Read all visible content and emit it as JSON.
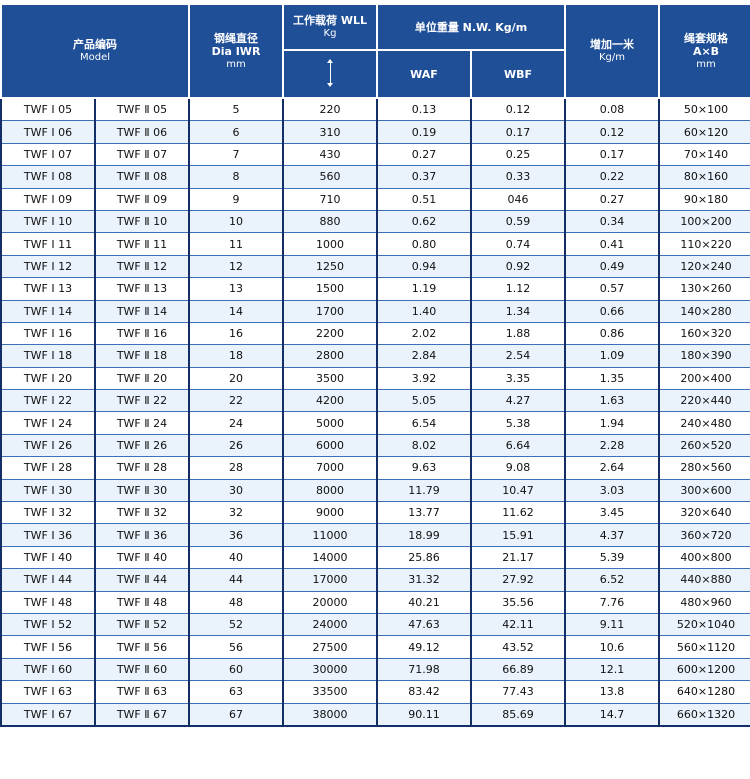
{
  "header": {
    "model_cn": "产品编码",
    "model_en": "Model",
    "dia_cn": "钢绳直径",
    "dia_en": "Dia IWR",
    "dia_unit": "mm",
    "wll": "工作载荷 WLL",
    "wll_unit": "Kg",
    "nw": "单位重量 N.W. Kg/m",
    "waf": "WAF",
    "wbf": "WBF",
    "add_cn": "增加一米",
    "add_unit": "Kg/m",
    "sleeve_cn": "绳套规格",
    "sleeve_dim": "A×B",
    "sleeve_unit": "mm"
  },
  "rows": [
    [
      "TWF Ⅰ 05",
      "TWF Ⅱ 05",
      "5",
      "220",
      "0.13",
      "0.12",
      "0.08",
      "50×100"
    ],
    [
      "TWF Ⅰ 06",
      "TWF Ⅱ 06",
      "6",
      "310",
      "0.19",
      "0.17",
      "0.12",
      "60×120"
    ],
    [
      "TWF Ⅰ 07",
      "TWF Ⅱ 07",
      "7",
      "430",
      "0.27",
      "0.25",
      "0.17",
      "70×140"
    ],
    [
      "TWF Ⅰ 08",
      "TWF Ⅱ 08",
      "8",
      "560",
      "0.37",
      "0.33",
      "0.22",
      "80×160"
    ],
    [
      "TWF Ⅰ 09",
      "TWF Ⅱ 09",
      "9",
      "710",
      "0.51",
      "046",
      "0.27",
      "90×180"
    ],
    [
      "TWF Ⅰ 10",
      "TWF Ⅱ 10",
      "10",
      "880",
      "0.62",
      "0.59",
      "0.34",
      "100×200"
    ],
    [
      "TWF Ⅰ 11",
      "TWF Ⅱ 11",
      "11",
      "1000",
      "0.80",
      "0.74",
      "0.41",
      "110×220"
    ],
    [
      "TWF Ⅰ 12",
      "TWF Ⅱ 12",
      "12",
      "1250",
      "0.94",
      "0.92",
      "0.49",
      "120×240"
    ],
    [
      "TWF Ⅰ 13",
      "TWF Ⅱ 13",
      "13",
      "1500",
      "1.19",
      "1.12",
      "0.57",
      "130×260"
    ],
    [
      "TWF Ⅰ 14",
      "TWF Ⅱ 14",
      "14",
      "1700",
      "1.40",
      "1.34",
      "0.66",
      "140×280"
    ],
    [
      "TWF Ⅰ 16",
      "TWF Ⅱ 16",
      "16",
      "2200",
      "2.02",
      "1.88",
      "0.86",
      "160×320"
    ],
    [
      "TWF Ⅰ 18",
      "TWF Ⅱ 18",
      "18",
      "2800",
      "2.84",
      "2.54",
      "1.09",
      "180×390"
    ],
    [
      "TWF Ⅰ 20",
      "TWF Ⅱ 20",
      "20",
      "3500",
      "3.92",
      "3.35",
      "1.35",
      "200×400"
    ],
    [
      "TWF Ⅰ 22",
      "TWF Ⅱ 22",
      "22",
      "4200",
      "5.05",
      "4.27",
      "1.63",
      "220×440"
    ],
    [
      "TWF Ⅰ 24",
      "TWF Ⅱ 24",
      "24",
      "5000",
      "6.54",
      "5.38",
      "1.94",
      "240×480"
    ],
    [
      "TWF Ⅰ 26",
      "TWF Ⅱ 26",
      "26",
      "6000",
      "8.02",
      "6.64",
      "2.28",
      "260×520"
    ],
    [
      "TWF Ⅰ 28",
      "TWF Ⅱ 28",
      "28",
      "7000",
      "9.63",
      "9.08",
      "2.64",
      "280×560"
    ],
    [
      "TWF Ⅰ 30",
      "TWF Ⅱ 30",
      "30",
      "8000",
      "11.79",
      "10.47",
      "3.03",
      "300×600"
    ],
    [
      "TWF Ⅰ 32",
      "TWF Ⅱ 32",
      "32",
      "9000",
      "13.77",
      "11.62",
      "3.45",
      "320×640"
    ],
    [
      "TWF Ⅰ 36",
      "TWF Ⅱ 36",
      "36",
      "11000",
      "18.99",
      "15.91",
      "4.37",
      "360×720"
    ],
    [
      "TWF Ⅰ 40",
      "TWF Ⅱ 40",
      "40",
      "14000",
      "25.86",
      "21.17",
      "5.39",
      "400×800"
    ],
    [
      "TWF Ⅰ 44",
      "TWF Ⅱ 44",
      "44",
      "17000",
      "31.32",
      "27.92",
      "6.52",
      "440×880"
    ],
    [
      "TWF Ⅰ 48",
      "TWF Ⅱ 48",
      "48",
      "20000",
      "40.21",
      "35.56",
      "7.76",
      "480×960"
    ],
    [
      "TWF Ⅰ 52",
      "TWF Ⅱ 52",
      "52",
      "24000",
      "47.63",
      "42.11",
      "9.11",
      "520×1040"
    ],
    [
      "TWF Ⅰ 56",
      "TWF Ⅱ 56",
      "56",
      "27500",
      "49.12",
      "43.52",
      "10.6",
      "560×1120"
    ],
    [
      "TWF Ⅰ 60",
      "TWF Ⅱ 60",
      "60",
      "30000",
      "71.98",
      "66.89",
      "12.1",
      "600×1200"
    ],
    [
      "TWF Ⅰ 63",
      "TWF Ⅱ 63",
      "63",
      "33500",
      "83.42",
      "77.43",
      "13.8",
      "640×1280"
    ],
    [
      "TWF Ⅰ 67",
      "TWF Ⅱ 67",
      "67",
      "38000",
      "90.11",
      "85.69",
      "14.7",
      "660×1320"
    ]
  ],
  "colors": {
    "header_bg": "#1f4f97",
    "row_alt": "#eaf2fb",
    "border": "#142f66"
  }
}
